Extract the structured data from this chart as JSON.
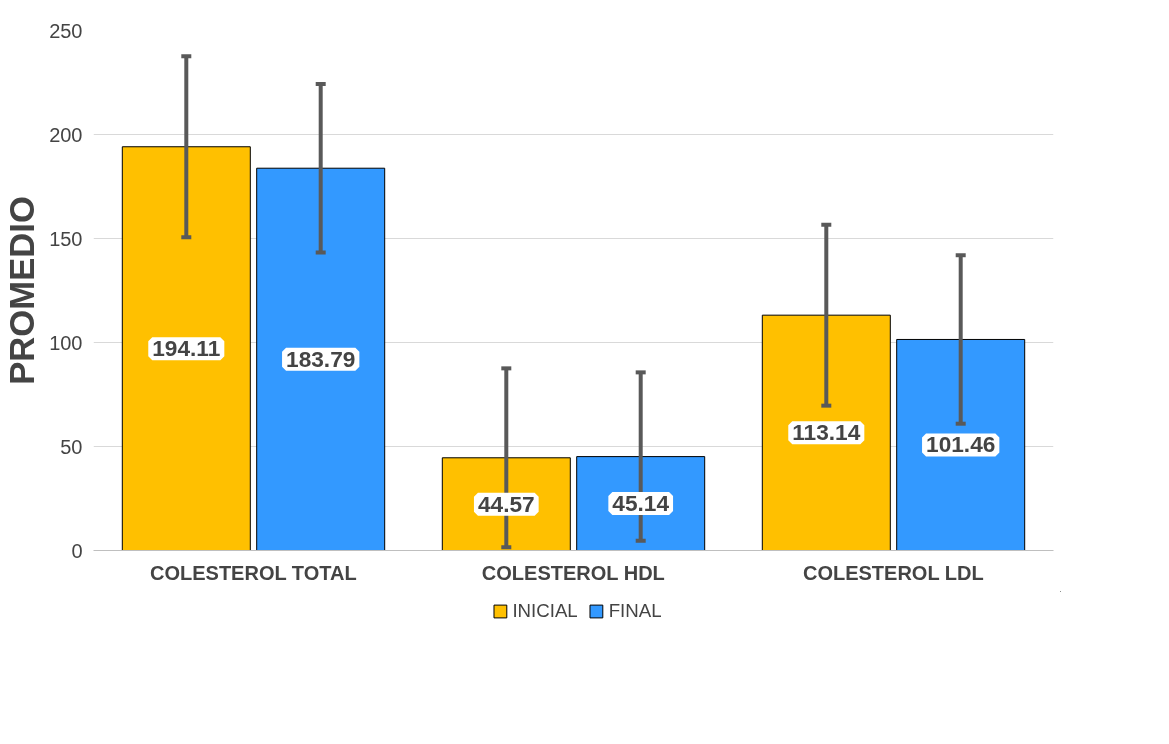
{
  "chart_data": {
    "type": "bar",
    "ylabel": "PROMEDIO",
    "categories": [
      "COLESTEROL TOTAL",
      "COLESTEROL HDL",
      "COLESTEROL LDL"
    ],
    "series": [
      {
        "name": "INICIAL",
        "color": "#ffc000",
        "values": [
          194.11,
          44.57,
          113.14
        ],
        "errors": [
          43.5,
          43,
          43.5
        ]
      },
      {
        "name": "FINAL",
        "color": "#3399ff",
        "values": [
          183.79,
          45.14,
          101.46
        ],
        "errors": [
          40.5,
          40.5,
          40.5
        ]
      }
    ],
    "ylim": [
      0,
      250
    ],
    "yticks": [
      0,
      50,
      100,
      150,
      200,
      250
    ],
    "grid": "y",
    "legend": "bottom",
    "data_labels": true
  }
}
